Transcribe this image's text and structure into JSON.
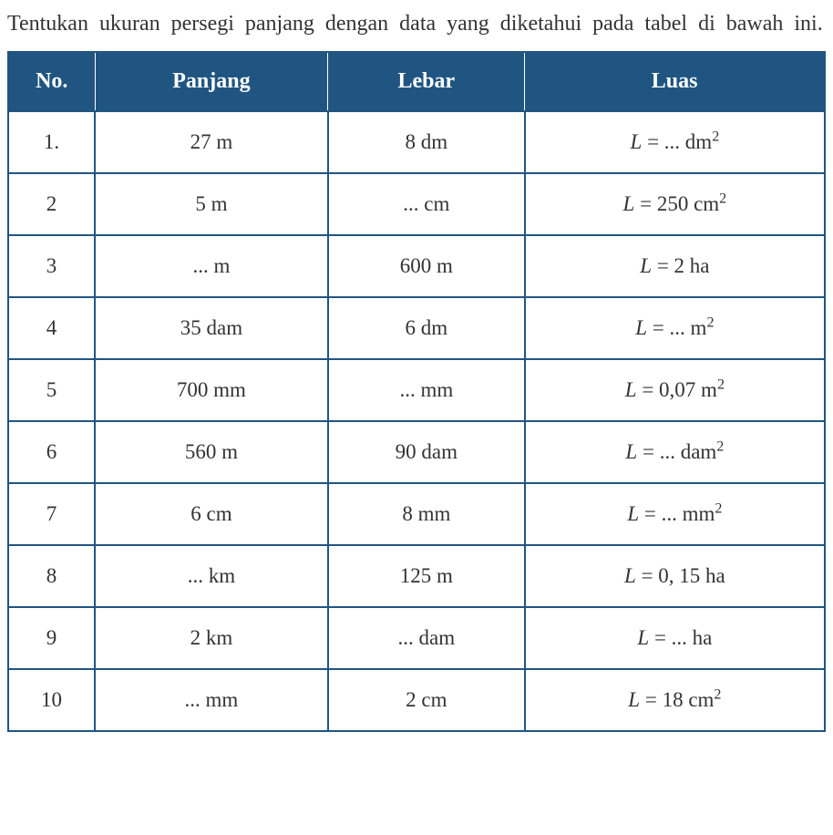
{
  "instruction": "Tentukan ukuran persegi panjang dengan data yang diketahui pada tabel di bawah ini.",
  "table": {
    "header_bg": "#205582",
    "header_fg": "#ffffff",
    "border_color": "#205582",
    "cell_bg": "#ffffff",
    "cell_fg": "#333333",
    "columns": [
      "No.",
      "Panjang",
      "Lebar",
      "Luas"
    ],
    "rows": [
      {
        "no": "1.",
        "panjang": "27 m",
        "lebar": "8 dm",
        "luas_html": "<span class=\"italic\">L</span> = ... dm<sup>2</sup>"
      },
      {
        "no": "2",
        "panjang": "5 m",
        "lebar": "... cm",
        "luas_html": "<span class=\"italic\">L</span> = 250 cm<sup>2</sup>"
      },
      {
        "no": "3",
        "panjang": "... m",
        "lebar": "600 m",
        "luas_html": "<span class=\"italic\">L</span> = 2 ha"
      },
      {
        "no": "4",
        "panjang": "35 dam",
        "lebar": "6 dm",
        "luas_html": "<span class=\"italic\">L</span> = ... m<sup>2</sup>"
      },
      {
        "no": "5",
        "panjang": "700 mm",
        "lebar": "... mm",
        "luas_html": "<span class=\"italic\">L</span> = 0,07 m<sup>2</sup>"
      },
      {
        "no": "6",
        "panjang": "560 m",
        "lebar": "90 dam",
        "luas_html": "<span class=\"italic\">L</span> = ... dam<sup>2</sup>"
      },
      {
        "no": "7",
        "panjang": "6 cm",
        "lebar": "8 mm",
        "luas_html": "<span class=\"italic\">L</span> = ... mm<sup>2</sup>"
      },
      {
        "no": "8",
        "panjang": "... km",
        "lebar": "125 m",
        "luas_html": "<span class=\"italic\">L</span> = 0, 15 ha"
      },
      {
        "no": "9",
        "panjang": "2 km",
        "lebar": "... dam",
        "luas_html": "<span class=\"italic\">L</span>  = ... ha"
      },
      {
        "no": "10",
        "panjang": "... mm",
        "lebar": "2 cm",
        "luas_html": "<span class=\"italic\">L</span>  = 18 cm<sup>2</sup>"
      }
    ]
  }
}
